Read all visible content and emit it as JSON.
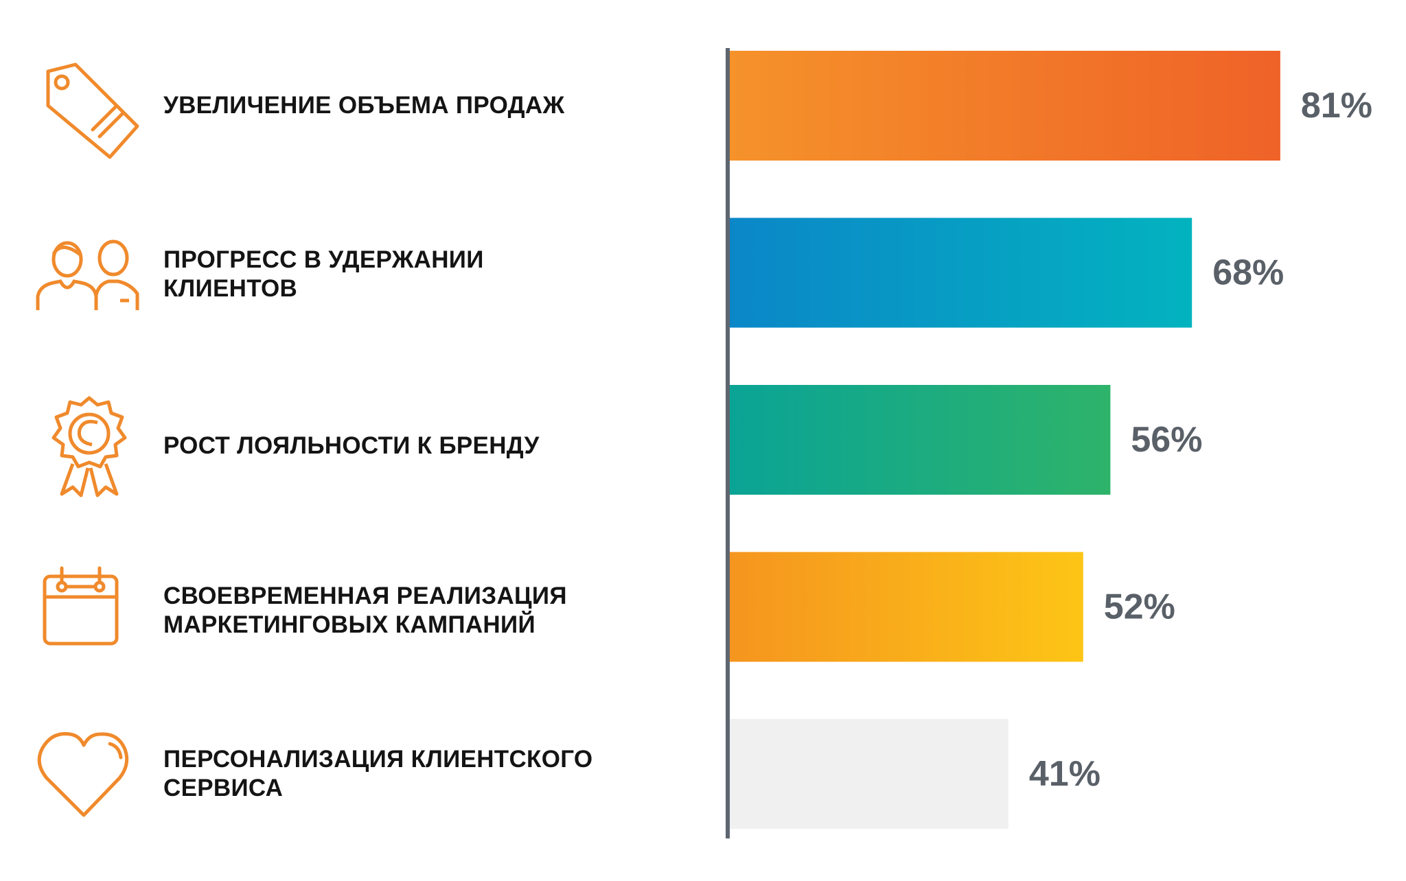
{
  "accent": "#f08a2c",
  "items": [
    {
      "label": "УВЕЛИЧЕНИЕ ОБЪЕМА ПРОДАЖ",
      "icon": "price-tag-icon"
    },
    {
      "label": "ПРОГРЕСС В УДЕРЖАНИИ\nКЛИЕНТОВ",
      "icon": "customers-icon"
    },
    {
      "label": "РОСТ ЛОЯЛЬНОСТИ К БРЕНДУ",
      "icon": "award-ribbon-icon"
    },
    {
      "label": "СВОЕВРЕМЕННАЯ РЕАЛИЗАЦИЯ\nМАРКЕТИНГОВЫХ КАМПАНИЙ",
      "icon": "calendar-icon"
    },
    {
      "label": "ПЕРСОНАЛИЗАЦИЯ КЛИЕНТСКОГО\nСЕРВИСА",
      "icon": "heart-icon"
    }
  ],
  "chart_data": {
    "type": "bar",
    "orientation": "horizontal",
    "categories": [
      "УВЕЛИЧЕНИЕ ОБЪЕМА ПРОДАЖ",
      "ПРОГРЕСС В УДЕРЖАНИИ КЛИЕНТОВ",
      "РОСТ ЛОЯЛЬНОСТИ К БРЕНДУ",
      "СВОЕВРЕМЕННАЯ РЕАЛИЗАЦИЯ МАРКЕТИНГОВЫХ КАМПАНИЙ",
      "ПЕРСОНАЛИЗАЦИЯ КЛИЕНТСКОГО СЕРВИСА"
    ],
    "values": [
      81,
      68,
      56,
      52,
      41
    ],
    "value_labels": [
      "81%",
      "68%",
      "56%",
      "52%",
      "41%"
    ],
    "unit": "%",
    "xlim": [
      0,
      100
    ],
    "grid": false,
    "bar_colors": [
      [
        "#f5922a",
        "#ef6228"
      ],
      [
        "#0b87c8",
        "#03b3bf"
      ],
      [
        "#0aa496",
        "#2eb36a"
      ],
      [
        "#f5951f",
        "#fdc516"
      ],
      [
        "#f0f0f0",
        "#f0f0f0"
      ]
    ],
    "axis_color": "#5e6670",
    "value_label_color": "#5a6068"
  }
}
